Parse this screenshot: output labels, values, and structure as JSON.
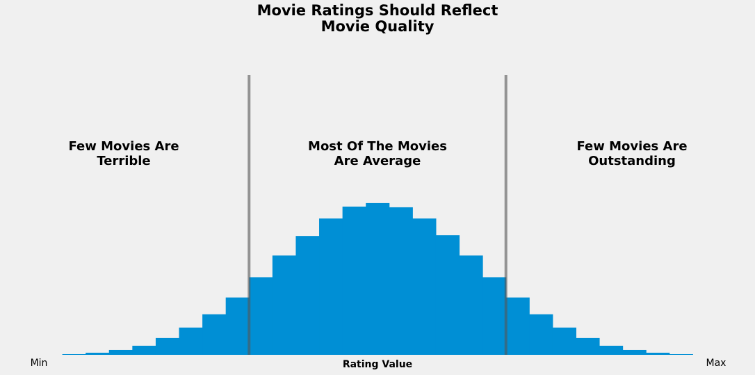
{
  "chart_data": {
    "type": "histogram",
    "title": [
      "Movie Ratings Should Reflect",
      "Movie Quality"
    ],
    "xlabel": "Rating Value",
    "bins": [
      0,
      1,
      2,
      3,
      4,
      5,
      6,
      7,
      8,
      9,
      10,
      11,
      12,
      13,
      14,
      15,
      16,
      17,
      18,
      19,
      20,
      21,
      22,
      23,
      24,
      25,
      26,
      27
    ],
    "values": [
      1,
      3,
      7,
      13,
      24,
      39,
      58,
      82,
      111,
      142,
      170,
      195,
      212,
      217,
      211,
      195,
      171,
      142,
      111,
      82,
      58,
      39,
      24,
      13,
      7,
      3,
      1
    ],
    "color": "#008fd5",
    "xlim": [
      -1,
      28
    ],
    "xticks": [
      {
        "value": -1,
        "label": "Min"
      },
      {
        "value": 28,
        "label": "Max"
      }
    ],
    "ylim": [
      0,
      400
    ],
    "vlines": [
      8,
      19
    ],
    "vline_color": "#555555",
    "annotations": [
      {
        "lines": [
          "Few Movies Are",
          "Terrible"
        ]
      },
      {
        "lines": [
          "Most Of The Movies",
          "Are Average"
        ]
      },
      {
        "lines": [
          "Few Movies Are",
          "Outstanding"
        ]
      }
    ]
  }
}
